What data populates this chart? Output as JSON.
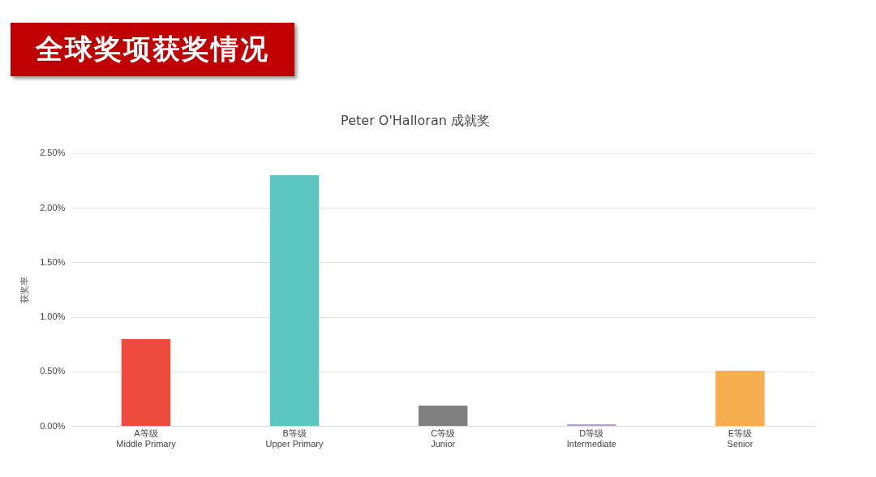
{
  "chart_data": {
    "type": "bar",
    "title": "Peter O'Halloran 成就奖",
    "subtitle": "全球奖项获奖情况",
    "ylabel": "获奖率",
    "categories": [
      "A等级\nMiddle Primary",
      "B等级\nUpper Primary",
      "C等级\nJunior",
      "D等级\nIntermediate",
      "E等级\nSenior"
    ],
    "values": [
      0.8,
      2.3,
      0.19,
      0.02,
      0.51
    ],
    "colors": [
      "#ec4b3e",
      "#5bc5bf",
      "#808080",
      "#b99ad9",
      "#f6ae4e"
    ],
    "ylim": [
      0,
      2.5
    ],
    "yticks": [
      {
        "value": 0,
        "label": "0.00%"
      },
      {
        "value": 0.5,
        "label": "0.50%"
      },
      {
        "value": 1,
        "label": "1.00%"
      },
      {
        "value": 1.5,
        "label": "1.50%"
      },
      {
        "value": 2,
        "label": "2.00%"
      },
      {
        "value": 2.5,
        "label": "2.50%"
      }
    ],
    "grid": "y",
    "legend": false
  }
}
